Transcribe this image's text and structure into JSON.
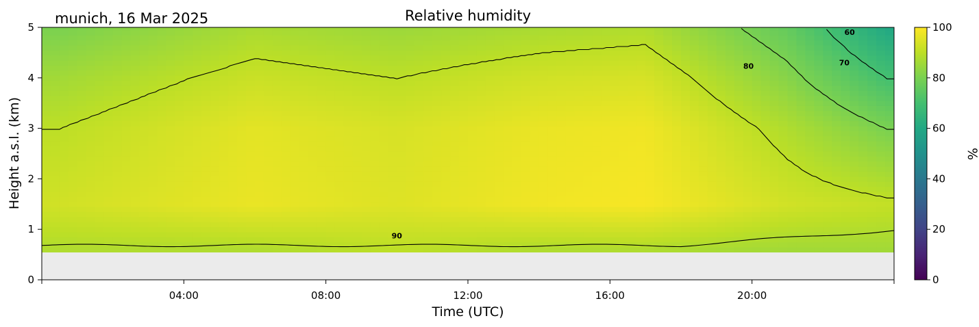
{
  "chart_data": {
    "type": "heatmap",
    "title": "Relative humidity",
    "location_date_label": "munich, 16 Mar 2025",
    "xlabel": "Time (UTC)",
    "ylabel": "Height a.s.l. (km)",
    "xlim_hours": [
      0,
      24
    ],
    "ylim_km": [
      0,
      5
    ],
    "x_ticks": [
      {
        "hour": 0,
        "label": ""
      },
      {
        "hour": 4,
        "label": "04:00"
      },
      {
        "hour": 8,
        "label": "08:00"
      },
      {
        "hour": 12,
        "label": "12:00"
      },
      {
        "hour": 16,
        "label": "16:00"
      },
      {
        "hour": 20,
        "label": "20:00"
      },
      {
        "hour": 24,
        "label": ""
      }
    ],
    "y_ticks": [
      0,
      1,
      2,
      3,
      4,
      5
    ],
    "y_tick_labels": [
      "0",
      "1",
      "2",
      "3",
      "4",
      "5"
    ],
    "colorbar": {
      "label": "%",
      "range": [
        0,
        100
      ],
      "ticks": [
        0,
        20,
        40,
        60,
        80,
        100
      ],
      "tick_labels": [
        "0",
        "20",
        "40",
        "60",
        "80",
        "100"
      ],
      "colormap": "viridis"
    },
    "data_bottom_km": 0.55,
    "no_data_color": "#ebebeb",
    "contour_levels": [
      60,
      70,
      80,
      90
    ],
    "contour_labels": [
      {
        "text": "90",
        "hour": 10.0,
        "km": 0.82
      },
      {
        "text": "80",
        "hour": 19.9,
        "km": 4.18
      },
      {
        "text": "70",
        "hour": 22.6,
        "km": 4.25
      },
      {
        "text": "60",
        "hour": 22.75,
        "km": 4.85
      }
    ],
    "humidity_profile_summary": [
      {
        "hour": 0.5,
        "rh_at_km": [
          [
            0.6,
            88
          ],
          [
            1.5,
            93
          ],
          [
            3.0,
            90
          ],
          [
            4.0,
            86
          ],
          [
            5.0,
            80
          ]
        ]
      },
      {
        "hour": 6.0,
        "rh_at_km": [
          [
            0.6,
            88
          ],
          [
            1.5,
            97
          ],
          [
            3.0,
            96
          ],
          [
            4.0,
            92
          ],
          [
            5.0,
            87
          ]
        ]
      },
      {
        "hour": 10.0,
        "rh_at_km": [
          [
            0.6,
            90
          ],
          [
            1.5,
            95
          ],
          [
            3.0,
            94
          ],
          [
            4.0,
            90
          ],
          [
            5.0,
            85
          ]
        ]
      },
      {
        "hour": 14.0,
        "rh_at_km": [
          [
            0.6,
            88
          ],
          [
            1.5,
            98
          ],
          [
            3.0,
            97
          ],
          [
            4.0,
            93
          ],
          [
            5.0,
            87
          ]
        ]
      },
      {
        "hour": 17.0,
        "rh_at_km": [
          [
            0.6,
            88
          ],
          [
            1.5,
            99
          ],
          [
            3.0,
            98
          ],
          [
            4.0,
            94
          ],
          [
            5.0,
            88
          ]
        ]
      },
      {
        "hour": 21.0,
        "rh_at_km": [
          [
            0.6,
            86
          ],
          [
            1.5,
            93
          ],
          [
            3.0,
            88
          ],
          [
            4.0,
            82
          ],
          [
            5.0,
            76
          ]
        ]
      },
      {
        "hour": 23.8,
        "rh_at_km": [
          [
            0.6,
            86
          ],
          [
            1.5,
            91
          ],
          [
            3.0,
            80
          ],
          [
            4.0,
            70
          ],
          [
            5.0,
            60
          ]
        ]
      }
    ]
  }
}
